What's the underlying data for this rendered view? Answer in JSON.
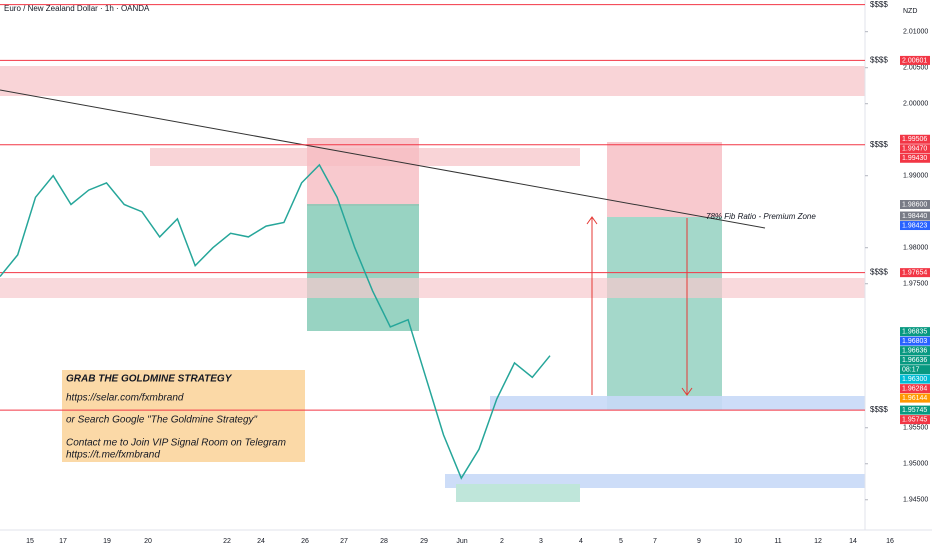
{
  "chart_data": {
    "type": "line",
    "title": "Euro / New Zealand Dollar · 1h · OANDA",
    "currency": "NZD",
    "series": [
      {
        "name": "EURNZD",
        "color": "#26a69a",
        "values": [
          1.976,
          1.979,
          1.987,
          1.99,
          1.986,
          1.988,
          1.989,
          1.986,
          1.985,
          1.9815,
          1.984,
          1.9775,
          1.98,
          1.982,
          1.9815,
          1.983,
          1.9835,
          1.989,
          1.9915,
          1.987,
          1.98,
          1.974,
          1.969,
          1.97,
          1.962,
          1.954,
          1.948,
          1.952,
          1.959,
          1.964,
          1.962,
          1.965
        ]
      }
    ],
    "ylim": [
      1.9408,
      2.0144
    ],
    "yticks": [
      {
        "value": 2.01,
        "label": "2.01000"
      },
      {
        "value": 2.005,
        "label": "2.00500"
      },
      {
        "value": 2.0,
        "label": "2.00000"
      },
      {
        "value": 1.99,
        "label": "1.99000"
      },
      {
        "value": 1.98,
        "label": "1.98000"
      },
      {
        "value": 1.975,
        "label": "1.97500"
      },
      {
        "value": 1.955,
        "label": "1.95500"
      },
      {
        "value": 1.95,
        "label": "1.95000"
      },
      {
        "value": 1.945,
        "label": "1.94500"
      }
    ],
    "x_labels": [
      "15",
      "17",
      "19",
      "20",
      "22",
      "24",
      "26",
      "27",
      "28",
      "29",
      "Jun",
      "2",
      "3",
      "4",
      "5",
      "7",
      "9",
      "10",
      "11",
      "12",
      "14",
      "16"
    ],
    "levels": [
      {
        "value": 2.01375,
        "label": "$$$$"
      },
      {
        "value": 2.00601,
        "label": "$$$$"
      },
      {
        "value": 1.9943,
        "label": "$$$$"
      },
      {
        "value": 1.97654,
        "label": "$$$$"
      },
      {
        "value": 1.95745,
        "label": "$$$$"
      }
    ],
    "price_labels": [
      {
        "value": 2.00601,
        "label": "2.00601",
        "color": "#f23645"
      },
      {
        "value": 1.99506,
        "label": "1.99506",
        "color": "#f23645"
      },
      {
        "value": 1.9947,
        "label": "1.99470",
        "color": "#f23645"
      },
      {
        "value": 1.9943,
        "label": "1.99430",
        "color": "#f23645"
      },
      {
        "value": 1.986,
        "label": "1.98600",
        "color": "#787b86"
      },
      {
        "value": 1.9844,
        "label": "1.98440",
        "color": "#787b86"
      },
      {
        "value": 1.98423,
        "label": "1.98423",
        "color": "#2962ff"
      },
      {
        "value": 1.97654,
        "label": "1.97654",
        "color": "#f23645"
      },
      {
        "value": 1.96835,
        "label": "1.96835",
        "color": "#089981"
      },
      {
        "value": 1.96803,
        "label": "1.96803",
        "color": "#2962ff"
      },
      {
        "value": 1.96636,
        "label": "1.96636",
        "color": "#089981"
      },
      {
        "value": 1.96636,
        "label": "1.96636",
        "color": "#089981"
      },
      {
        "value": 1.963,
        "label": "1.96300",
        "color": "#00bcd4"
      },
      {
        "value": 1.96284,
        "label": "1.96284",
        "color": "#f23645"
      },
      {
        "value": 1.96144,
        "label": "1.96144",
        "color": "#ff9800"
      },
      {
        "value": 1.95745,
        "label": "1.95745",
        "color": "#089981"
      },
      {
        "value": 1.95745,
        "label": "1.95745",
        "color": "#f23645"
      }
    ],
    "countdown": "08:17",
    "annotation": "78% Fib Ratio - Premium Zone",
    "note_lines": [
      "GRAB THE GOLDMINE STRATEGY",
      "https://selar.com/fxmbrand",
      "or Search Google \"The Goldmine Strategy\"",
      "Contact me to Join VIP Signal Room on Telegram",
      "https://t.me/fxmbrand"
    ]
  }
}
